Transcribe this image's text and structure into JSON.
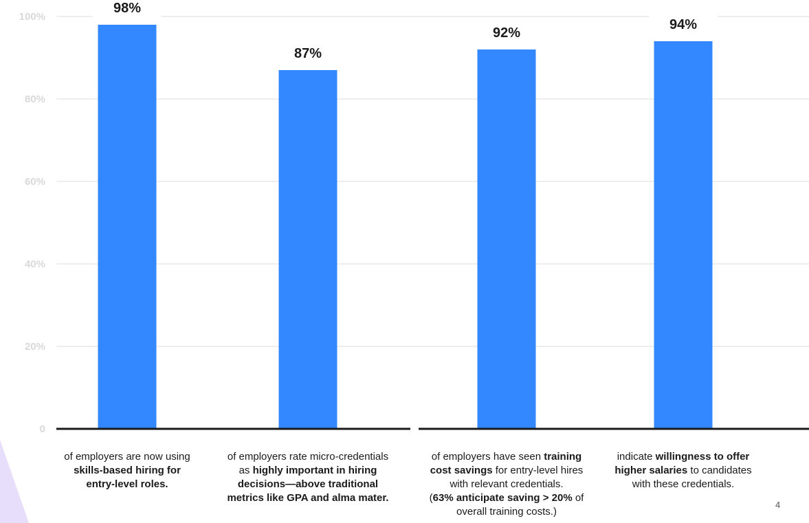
{
  "chart_data": {
    "type": "bar",
    "categories": [
      "of employers are now using skills-based hiring for entry-level roles.",
      "of employers rate micro-credentials as highly important in hiring decisions—above traditional metrics like GPA and alma mater.",
      "of employers have seen training cost savings for entry-level hires with relevant credentials. (63% anticipate saving > 20% of overall training costs.)",
      "indicate willingness to offer higher salaries to candidates with these credentials."
    ],
    "values": [
      98,
      87,
      92,
      94
    ],
    "value_labels": [
      "98%",
      "87%",
      "92%",
      "94%"
    ],
    "ylim": [
      0,
      100
    ],
    "yticks": [
      0,
      20,
      40,
      60,
      80,
      100
    ],
    "ytick_labels": [
      "0",
      "20%",
      "40%",
      "60%",
      "80%",
      "100%"
    ],
    "grid": true,
    "bar_color": "#3388ff",
    "grid_color": "#dddddd",
    "axis_color": "#1a1a1a"
  },
  "captions": [
    [
      {
        "text": "of employers are now using",
        "bold": false
      },
      {
        "text": "skills-based hiring for",
        "bold": true
      },
      {
        "text": "entry-level roles.",
        "bold": true
      }
    ],
    [
      {
        "text": "of employers rate micro-credentials",
        "bold": false
      },
      {
        "segments": [
          {
            "text": "as ",
            "bold": false
          },
          {
            "text": "highly important in hiring",
            "bold": true
          }
        ]
      },
      {
        "text": "decisions—above traditional",
        "bold": true
      },
      {
        "text": "metrics like GPA and alma mater.",
        "bold": true
      }
    ],
    [
      {
        "segments": [
          {
            "text": "of employers have seen ",
            "bold": false
          },
          {
            "text": "training",
            "bold": true
          }
        ]
      },
      {
        "segments": [
          {
            "text": "cost savings",
            "bold": true
          },
          {
            "text": " for entry-level hires",
            "bold": false
          }
        ]
      },
      {
        "text": "with relevant credentials.",
        "bold": false
      },
      {
        "segments": [
          {
            "text": "(",
            "bold": false
          },
          {
            "text": "63% anticipate saving > 20%",
            "bold": true
          },
          {
            "text": " of",
            "bold": false
          }
        ]
      },
      {
        "text": "overall training costs.)",
        "bold": false
      }
    ],
    [
      {
        "segments": [
          {
            "text": "indicate ",
            "bold": false
          },
          {
            "text": "willingness to offer",
            "bold": true
          }
        ]
      },
      {
        "segments": [
          {
            "text": "higher salaries",
            "bold": true
          },
          {
            "text": " to candidates",
            "bold": false
          }
        ]
      },
      {
        "text": "with these credentials.",
        "bold": false
      }
    ]
  ],
  "page_number": "4",
  "decoration_color": "#e6defa"
}
